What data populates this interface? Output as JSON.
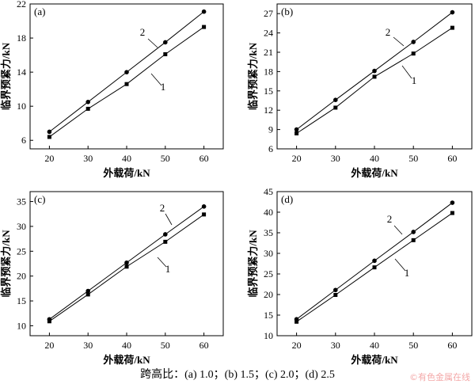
{
  "caption": "跨高比：(a) 1.0；(b) 1.5；(c) 2.0；(d) 2.5",
  "watermark": "©有色金属在线",
  "chart_data": [
    {
      "panel": "(a)",
      "type": "line",
      "xlabel": "外载荷/kN",
      "ylabel": "临界预紧力/kN",
      "xlim": [
        15,
        65
      ],
      "ylim": [
        5,
        22
      ],
      "xticks": [
        20,
        30,
        40,
        50,
        60
      ],
      "yticks": [
        6,
        10,
        14,
        18,
        22
      ],
      "grid": false,
      "x": [
        20,
        30,
        40,
        50,
        60
      ],
      "series": [
        {
          "name": "1",
          "marker": "square",
          "values": [
            6.4,
            9.7,
            12.6,
            16.1,
            19.3
          ]
        },
        {
          "name": "2",
          "marker": "circle",
          "values": [
            7.0,
            10.5,
            14.0,
            17.5,
            21.1
          ]
        }
      ]
    },
    {
      "panel": "(b)",
      "type": "line",
      "xlabel": "外载荷/kN",
      "ylabel": "临界预紧力/kN",
      "xlim": [
        15,
        65
      ],
      "ylim": [
        6,
        28.5
      ],
      "xticks": [
        20,
        30,
        40,
        50,
        60
      ],
      "yticks": [
        6,
        9,
        12,
        15,
        18,
        21,
        24,
        27
      ],
      "grid": false,
      "x": [
        20,
        30,
        40,
        50,
        60
      ],
      "series": [
        {
          "name": "1",
          "marker": "square",
          "values": [
            8.4,
            12.4,
            17.2,
            20.8,
            24.8
          ]
        },
        {
          "name": "2",
          "marker": "circle",
          "values": [
            9.0,
            13.6,
            18.1,
            22.6,
            27.2
          ]
        }
      ]
    },
    {
      "panel": "(c)",
      "type": "line",
      "xlabel": "外载荷/kN",
      "ylabel": "临界预紧力/kN",
      "xlim": [
        15,
        65
      ],
      "ylim": [
        8,
        37
      ],
      "xticks": [
        20,
        30,
        40,
        50,
        60
      ],
      "yticks": [
        10,
        15,
        20,
        25,
        30,
        35
      ],
      "grid": false,
      "x": [
        20,
        30,
        40,
        50,
        60
      ],
      "series": [
        {
          "name": "1",
          "marker": "square",
          "values": [
            10.9,
            16.3,
            21.9,
            26.9,
            32.4
          ]
        },
        {
          "name": "2",
          "marker": "circle",
          "values": [
            11.3,
            17.0,
            22.7,
            28.4,
            34.0
          ]
        }
      ]
    },
    {
      "panel": "(d)",
      "type": "line",
      "xlabel": "外载荷/kN",
      "ylabel": "临界预紧力/kN",
      "xlim": [
        15,
        65
      ],
      "ylim": [
        10,
        45
      ],
      "xticks": [
        20,
        30,
        40,
        50,
        60
      ],
      "yticks": [
        10,
        15,
        20,
        25,
        30,
        35,
        40,
        45
      ],
      "grid": false,
      "x": [
        20,
        30,
        40,
        50,
        60
      ],
      "series": [
        {
          "name": "1",
          "marker": "square",
          "values": [
            13.4,
            19.9,
            26.6,
            33.2,
            39.8
          ]
        },
        {
          "name": "2",
          "marker": "circle",
          "values": [
            14.0,
            21.1,
            28.2,
            35.2,
            42.3
          ]
        }
      ]
    }
  ]
}
